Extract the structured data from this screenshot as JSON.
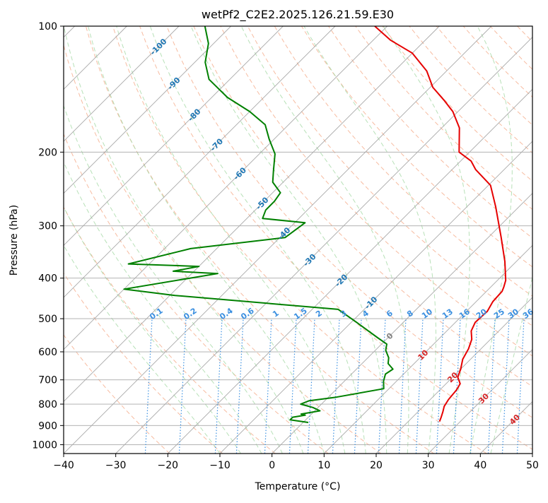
{
  "chart_data": {
    "type": "line",
    "chart_kind": "skew-T log-P diagram",
    "title": "wetPf2_C2E2.2025.126.21.59.E30",
    "xlabel": "Temperature (°C)",
    "ylabel": "Pressure (hPa)",
    "xlim": [
      -40,
      50
    ],
    "ylim": [
      1050,
      100
    ],
    "y_scale": "log",
    "x_ticks": [
      -40,
      -30,
      -20,
      -10,
      0,
      10,
      20,
      30,
      40,
      50
    ],
    "y_ticks": [
      100,
      200,
      300,
      400,
      500,
      600,
      700,
      800,
      900,
      1000
    ],
    "grid": true,
    "colors": {
      "temperature": "#e60000",
      "dewpoint": "#008000",
      "isotherm": "#a9a9a9",
      "dry_adiabat": "#f4a582",
      "moist_adiabat": "#a6d9a6",
      "mixing_ratio": "#3a8fe0",
      "height_label_blue": "#1f77b4",
      "height_label_red": "#d62728",
      "freezing_label": "#808080"
    },
    "series": [
      {
        "key": "temperature",
        "color": "#e60000",
        "points": [
          [
            26.0,
            880
          ],
          [
            25.5,
            860
          ],
          [
            24.8,
            835
          ],
          [
            24.0,
            810
          ],
          [
            23.5,
            780
          ],
          [
            23.2,
            740
          ],
          [
            22.7,
            715
          ],
          [
            21.0,
            690
          ],
          [
            20.0,
            660
          ],
          [
            18.5,
            625
          ],
          [
            17.6,
            590
          ],
          [
            16.4,
            560
          ],
          [
            14.7,
            535
          ],
          [
            13.8,
            510
          ],
          [
            14.0,
            480
          ],
          [
            13.2,
            455
          ],
          [
            13.0,
            430
          ],
          [
            12.5,
            420
          ],
          [
            11.6,
            405
          ],
          [
            7.8,
            365
          ],
          [
            2.5,
            320
          ],
          [
            -4.5,
            270
          ],
          [
            -9.6,
            240
          ],
          [
            -15.5,
            220
          ],
          [
            -18.0,
            210
          ],
          [
            -22.0,
            200
          ],
          [
            -26.6,
            175
          ],
          [
            -31.0,
            160
          ],
          [
            -35.0,
            150
          ],
          [
            -39.5,
            140
          ],
          [
            -43.8,
            128
          ],
          [
            -50.0,
            116
          ],
          [
            -56.7,
            108
          ],
          [
            -62.4,
            100
          ]
        ]
      },
      {
        "key": "dewpoint",
        "color": "#008000",
        "points": [
          [
            1.0,
            885
          ],
          [
            -3.0,
            872
          ],
          [
            -3.0,
            860
          ],
          [
            -1.0,
            850
          ],
          [
            -2.0,
            845
          ],
          [
            1.0,
            830
          ],
          [
            -1.0,
            815
          ],
          [
            -4.0,
            800
          ],
          [
            -3.0,
            785
          ],
          [
            1.5,
            770
          ],
          [
            9.0,
            735
          ],
          [
            7.5,
            705
          ],
          [
            6.5,
            678
          ],
          [
            7.0,
            660
          ],
          [
            5.0,
            640
          ],
          [
            4.0,
            620
          ],
          [
            2.0,
            595
          ],
          [
            1.0,
            575
          ],
          [
            -2.0,
            555
          ],
          [
            -9.0,
            510
          ],
          [
            -15.0,
            475
          ],
          [
            -49.0,
            440
          ],
          [
            -60.0,
            425
          ],
          [
            -45.0,
            390
          ],
          [
            -54.0,
            385
          ],
          [
            -50.0,
            375
          ],
          [
            -64.0,
            370
          ],
          [
            -55.0,
            340
          ],
          [
            -39.0,
            320
          ],
          [
            -38.0,
            295
          ],
          [
            -47.0,
            288
          ],
          [
            -48.0,
            275
          ],
          [
            -48.0,
            262
          ],
          [
            -48.5,
            250
          ],
          [
            -52.0,
            236
          ],
          [
            -54.0,
            222
          ],
          [
            -57.0,
            202
          ],
          [
            -61.0,
            186
          ],
          [
            -64.5,
            172
          ],
          [
            -70.0,
            160
          ],
          [
            -77.0,
            148
          ],
          [
            -84.0,
            134
          ],
          [
            -88.0,
            122
          ],
          [
            -91.0,
            110
          ],
          [
            -95.0,
            100
          ]
        ]
      }
    ],
    "isotherm_labels": [
      {
        "text": "-100",
        "t": -100,
        "p": 112,
        "color": "#1f77b4"
      },
      {
        "text": "-90",
        "t": -90,
        "p": 137,
        "color": "#1f77b4"
      },
      {
        "text": "-80",
        "t": -80,
        "p": 163,
        "color": "#1f77b4"
      },
      {
        "text": "-70",
        "t": -70,
        "p": 192,
        "color": "#1f77b4"
      },
      {
        "text": "-60",
        "t": -60,
        "p": 225,
        "color": "#1f77b4"
      },
      {
        "text": "-50",
        "t": -50,
        "p": 265,
        "color": "#1f77b4"
      },
      {
        "text": "-40",
        "t": -40,
        "p": 313,
        "color": "#1f77b4"
      },
      {
        "text": "-30",
        "t": -30,
        "p": 362,
        "color": "#1f77b4"
      },
      {
        "text": "-20",
        "t": -20,
        "p": 405,
        "color": "#1f77b4"
      },
      {
        "text": "-10",
        "t": -10,
        "p": 458,
        "color": "#1f77b4"
      },
      {
        "text": "0",
        "t": 0,
        "p": 550,
        "color": "#808080"
      },
      {
        "text": "10",
        "t": 10,
        "p": 610,
        "color": "#d62728"
      },
      {
        "text": "20",
        "t": 20,
        "p": 690,
        "color": "#d62728"
      },
      {
        "text": "30",
        "t": 30,
        "p": 775,
        "color": "#d62728"
      },
      {
        "text": "40",
        "t": 40,
        "p": 870,
        "color": "#d62728"
      }
    ],
    "mixing_ratio_labels": [
      "0.1",
      "0.2",
      "0.4",
      "0.6",
      "1",
      "1.5",
      "2",
      "3",
      "4",
      "6",
      "8",
      "10",
      "13",
      "16",
      "20",
      "25",
      "30",
      "36"
    ]
  }
}
